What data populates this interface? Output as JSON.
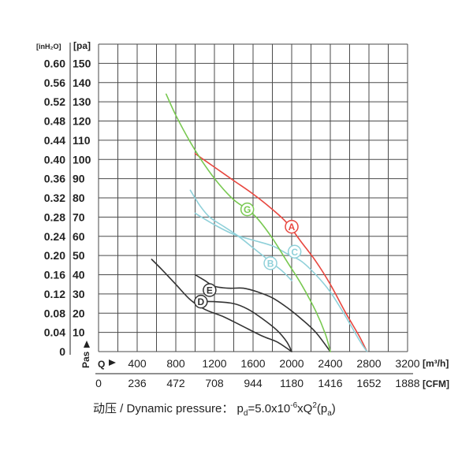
{
  "chart_data": {
    "type": "line",
    "units": {
      "inh2o": "[inH₂O]",
      "pa": "[pa]",
      "pas": "Pas",
      "q": "Q",
      "m3h": "[m³/h]",
      "cfm": "[CFM]"
    },
    "y_inh2o_ticks": [
      "0.60",
      "0.56",
      "0.52",
      "0.48",
      "0.44",
      "0.40",
      "0.36",
      "0.32",
      "0.28",
      "0.24",
      "0.20",
      "0.16",
      "0.12",
      "0.08",
      "0.04",
      "0"
    ],
    "y_pa_ticks": [
      "150",
      "140",
      "130",
      "120",
      "110",
      "100",
      "90",
      "80",
      "70",
      "60",
      "50",
      "40",
      "30",
      "20",
      "10"
    ],
    "x_m3h_ticks": [
      "400",
      "800",
      "1200",
      "1600",
      "2000",
      "2400",
      "2800",
      "3200"
    ],
    "x_cfm_ticks": [
      "0",
      "236",
      "472",
      "708",
      "944",
      "1180",
      "1416",
      "1652",
      "1888"
    ],
    "xlim": [
      0,
      3200
    ],
    "ylim": [
      0,
      160
    ],
    "grid": true,
    "series": [
      {
        "name": "A",
        "color": "#e8473f",
        "label_at": [
          2000,
          65
        ],
        "points": [
          [
            1000,
            103
          ],
          [
            1200,
            96
          ],
          [
            1400,
            89
          ],
          [
            1600,
            82
          ],
          [
            1800,
            74
          ],
          [
            1950,
            67
          ],
          [
            2100,
            57
          ],
          [
            2250,
            47
          ],
          [
            2400,
            35
          ],
          [
            2550,
            21
          ],
          [
            2700,
            8
          ],
          [
            2780,
            0
          ]
        ]
      },
      {
        "name": "B",
        "color": "#8fd0d9",
        "label_at": [
          1780,
          46
        ],
        "points": [
          [
            950,
            84
          ],
          [
            1050,
            76
          ],
          [
            1150,
            70
          ],
          [
            1300,
            65
          ],
          [
            1450,
            60
          ],
          [
            1600,
            54
          ],
          [
            1700,
            50
          ],
          [
            1800,
            46
          ],
          [
            1900,
            42
          ],
          [
            2000,
            37
          ]
        ]
      },
      {
        "name": "C",
        "color": "#8fd0d9",
        "label_at": [
          2030,
          52
        ],
        "points": [
          [
            1000,
            72
          ],
          [
            1200,
            66
          ],
          [
            1400,
            61
          ],
          [
            1600,
            58
          ],
          [
            1800,
            55
          ],
          [
            1950,
            51
          ],
          [
            2100,
            47
          ],
          [
            2250,
            40
          ],
          [
            2400,
            31
          ],
          [
            2550,
            19
          ],
          [
            2700,
            6
          ],
          [
            2780,
            0
          ]
        ]
      },
      {
        "name": "D",
        "color": "#333333",
        "label_at": [
          1060,
          26
        ],
        "points": [
          [
            1000,
            26
          ],
          [
            1200,
            26
          ],
          [
            1400,
            25
          ],
          [
            1550,
            22
          ],
          [
            1700,
            17
          ],
          [
            1850,
            11
          ],
          [
            1950,
            5
          ],
          [
            2000,
            0
          ]
        ]
      },
      {
        "name": "E",
        "color": "#333333",
        "label_at": [
          1150,
          32
        ],
        "points": [
          [
            1000,
            40
          ],
          [
            1100,
            37
          ],
          [
            1200,
            34
          ],
          [
            1350,
            33
          ],
          [
            1500,
            33
          ],
          [
            1650,
            31
          ],
          [
            1800,
            28
          ],
          [
            1950,
            23
          ],
          [
            2100,
            17
          ],
          [
            2250,
            10
          ],
          [
            2400,
            0
          ]
        ]
      },
      {
        "name": "G",
        "color": "#78c850",
        "label_at": [
          1540,
          74
        ],
        "points": [
          [
            700,
            134
          ],
          [
            800,
            123
          ],
          [
            950,
            109
          ],
          [
            1100,
            97
          ],
          [
            1250,
            87
          ],
          [
            1400,
            79
          ],
          [
            1540,
            74
          ],
          [
            1650,
            69
          ],
          [
            1800,
            59
          ],
          [
            1950,
            47
          ],
          [
            2100,
            35
          ],
          [
            2250,
            21
          ],
          [
            2350,
            9
          ],
          [
            2400,
            0
          ]
        ]
      },
      {
        "name": "",
        "color": "#333333",
        "label_at": null,
        "points": [
          [
            550,
            48
          ],
          [
            650,
            43
          ],
          [
            800,
            35
          ],
          [
            950,
            27
          ],
          [
            1100,
            22
          ],
          [
            1300,
            18
          ],
          [
            1500,
            13
          ],
          [
            1700,
            8
          ],
          [
            1850,
            5
          ],
          [
            2000,
            0
          ]
        ]
      }
    ]
  },
  "footer": {
    "formula_prefix": "动压 / Dynamic pressure：  p",
    "formula_sub_d": "d",
    "formula_mid": "=5.0x10",
    "formula_sup": "-6",
    "formula_mid2": "xQ",
    "formula_sup2": "2",
    "formula_mid3": "(p",
    "formula_sub_a": "a",
    "formula_end": ")"
  }
}
